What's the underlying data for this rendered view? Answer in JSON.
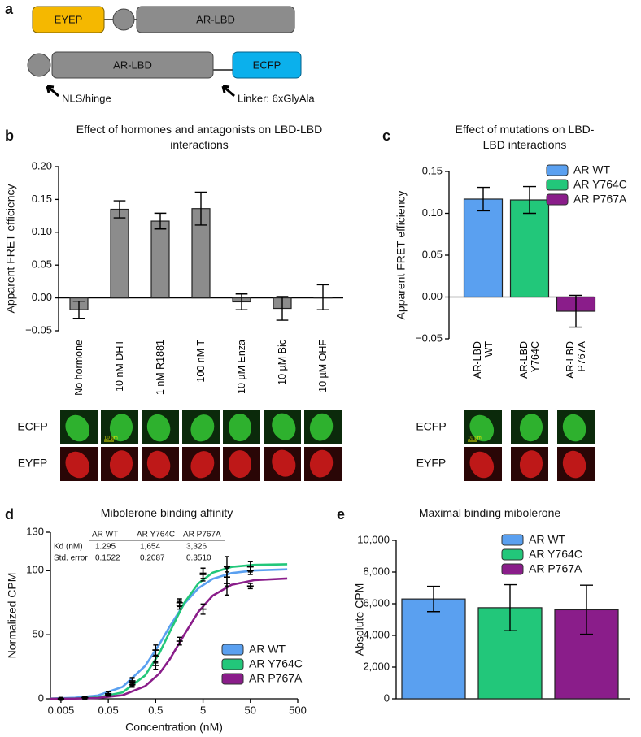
{
  "panel_labels": [
    "a",
    "b",
    "c",
    "d",
    "e"
  ],
  "diagram": {
    "constructs": [
      {
        "parts": [
          "EYEP",
          "AR-LBD"
        ]
      },
      {
        "parts": [
          "AR-LBD",
          "ECFP"
        ]
      }
    ],
    "annotations": [
      "NLS/hinge",
      "Linker: 6xGlyAla"
    ]
  },
  "chart_data": [
    {
      "type": "bar",
      "title": "Effect of hormones and antagonists on LBD-LBD interactions",
      "y_label": "Apparent FRET efficiency",
      "categories": [
        "No hormone",
        "10 nM DHT",
        "1 nM R1881",
        "100 nM T",
        "10 µM Enza",
        "10 µM Bic",
        "10 µM OHF"
      ],
      "values": [
        -0.018,
        0.135,
        0.117,
        0.136,
        -0.006,
        -0.016,
        0.001
      ],
      "errors": [
        0.013,
        0.013,
        0.012,
        0.025,
        0.012,
        0.018,
        0.019
      ],
      "color": "#8c8c8c",
      "ylim": [
        -0.05,
        0.2
      ],
      "yticks": [
        {
          "value": -0.05,
          "label": "−0.05"
        },
        {
          "value": 0,
          "label": "0.00"
        },
        0.05,
        {
          "value": 0.1,
          "label": "0.10"
        },
        0.15,
        {
          "value": 0.2,
          "label": "0.20"
        }
      ],
      "micrograph_channels": [
        "ECFP",
        "EYFP"
      ],
      "scale_bar": "10 µm"
    },
    {
      "type": "bar",
      "title": "Effect of mutations on LBD-LBD interactions",
      "y_label": "Apparent FRET efficiency",
      "categories": [
        "AR-LBD WT",
        "AR-LBD Y764C",
        "AR-LBD P767A"
      ],
      "values": [
        0.117,
        0.116,
        -0.017
      ],
      "errors": [
        0.014,
        0.016,
        0.019
      ],
      "colors": [
        "#5aa0f0",
        "#22c77a",
        "#8a1d8a"
      ],
      "legend": [
        "AR WT",
        "AR Y764C",
        "AR P767A"
      ],
      "ylim": [
        -0.05,
        0.15
      ],
      "yticks": [
        {
          "value": -0.05,
          "label": "−0.05"
        },
        {
          "value": 0,
          "label": "0.00"
        },
        0.05,
        {
          "value": 0.1,
          "label": "0.10"
        },
        0.15
      ],
      "micrograph_channels": [
        "ECFP",
        "EYFP"
      ],
      "scale_bar": "10 µm"
    },
    {
      "type": "line",
      "title": "Mibolerone binding affinity",
      "x_label": "Concentration (nM)",
      "y_label": "Normalized CPM",
      "log_x": true,
      "xlim": [
        0.003,
        500
      ],
      "xticks": [
        0.005,
        0.05,
        0.5,
        5,
        50,
        500
      ],
      "ylim": [
        0,
        130
      ],
      "yticks": [
        0,
        50,
        100,
        130
      ],
      "x": [
        0.005,
        0.016,
        0.05,
        0.16,
        0.5,
        1.6,
        5,
        16,
        50
      ],
      "fit_x": [
        0.003,
        0.01,
        0.03,
        0.1,
        0.3,
        0.6,
        1,
        2,
        4,
        8,
        20,
        60,
        300
      ],
      "series": [
        {
          "name": "AR WT",
          "color": "#5aa0f0",
          "values": [
            0,
            1,
            4,
            14,
            38,
            73,
            97,
            95,
            100
          ],
          "errors": [
            1,
            1,
            1.5,
            2.5,
            4,
            3,
            5,
            7,
            3
          ],
          "fit_values": [
            0.2,
            0.8,
            2.6,
            9.3,
            25.6,
            42.6,
            56.7,
            74,
            86.3,
            93.6,
            98.1,
            100.1,
            101
          ]
        },
        {
          "name": "AR Y764C",
          "color": "#22c77a",
          "values": [
            0,
            1,
            4,
            13,
            33,
            75,
            98,
            103,
            103
          ],
          "errors": [
            1,
            1,
            1.5,
            3,
            5,
            3,
            4,
            8,
            4
          ],
          "fit_values": [
            0.1,
            0.3,
            1.1,
            5,
            18.2,
            35.7,
            52.5,
            74.7,
            90.1,
            98.4,
            102.9,
            104.5,
            105
          ]
        },
        {
          "name": "AR P767A",
          "color": "#8a1d8a",
          "values": [
            0,
            1,
            3,
            11,
            26,
            45,
            70,
            90,
            88
          ],
          "errors": [
            1,
            1,
            1,
            2,
            3,
            3,
            4,
            9,
            2
          ],
          "fit_values": [
            0.04,
            0.2,
            0.7,
            2.8,
            9.8,
            19.8,
            31.1,
            50,
            67.9,
            80.5,
            89,
            92.6,
            93.9
          ]
        }
      ],
      "table": {
        "columns": [
          "AR WT",
          "AR Y764C",
          "AR P767A"
        ],
        "rows": [
          {
            "label": "Kd (nM)",
            "cells": [
              "1.295",
              "1,654",
              "3,326"
            ]
          },
          {
            "label": "Std. error",
            "cells": [
              "0.1522",
              "0.2087",
              "0.3510"
            ]
          }
        ]
      }
    },
    {
      "type": "bar",
      "title": "Maximal binding mibolerone",
      "y_label": "Absolute CPM",
      "values": [
        6300,
        5750,
        5620
      ],
      "errors": [
        800,
        1450,
        1550
      ],
      "colors": [
        "#5aa0f0",
        "#22c77a",
        "#8a1d8a"
      ],
      "legend": [
        "AR WT",
        "AR Y764C",
        "AR P767A"
      ],
      "ylim": [
        0,
        10000
      ],
      "yticks": [
        0,
        {
          "value": 2000,
          "label": "2,000"
        },
        {
          "value": 4000,
          "label": "4,000"
        },
        {
          "value": 6000,
          "label": "6,000"
        },
        {
          "value": 8000,
          "label": "8,000"
        },
        {
          "value": 10000,
          "label": "10,000"
        }
      ]
    }
  ]
}
